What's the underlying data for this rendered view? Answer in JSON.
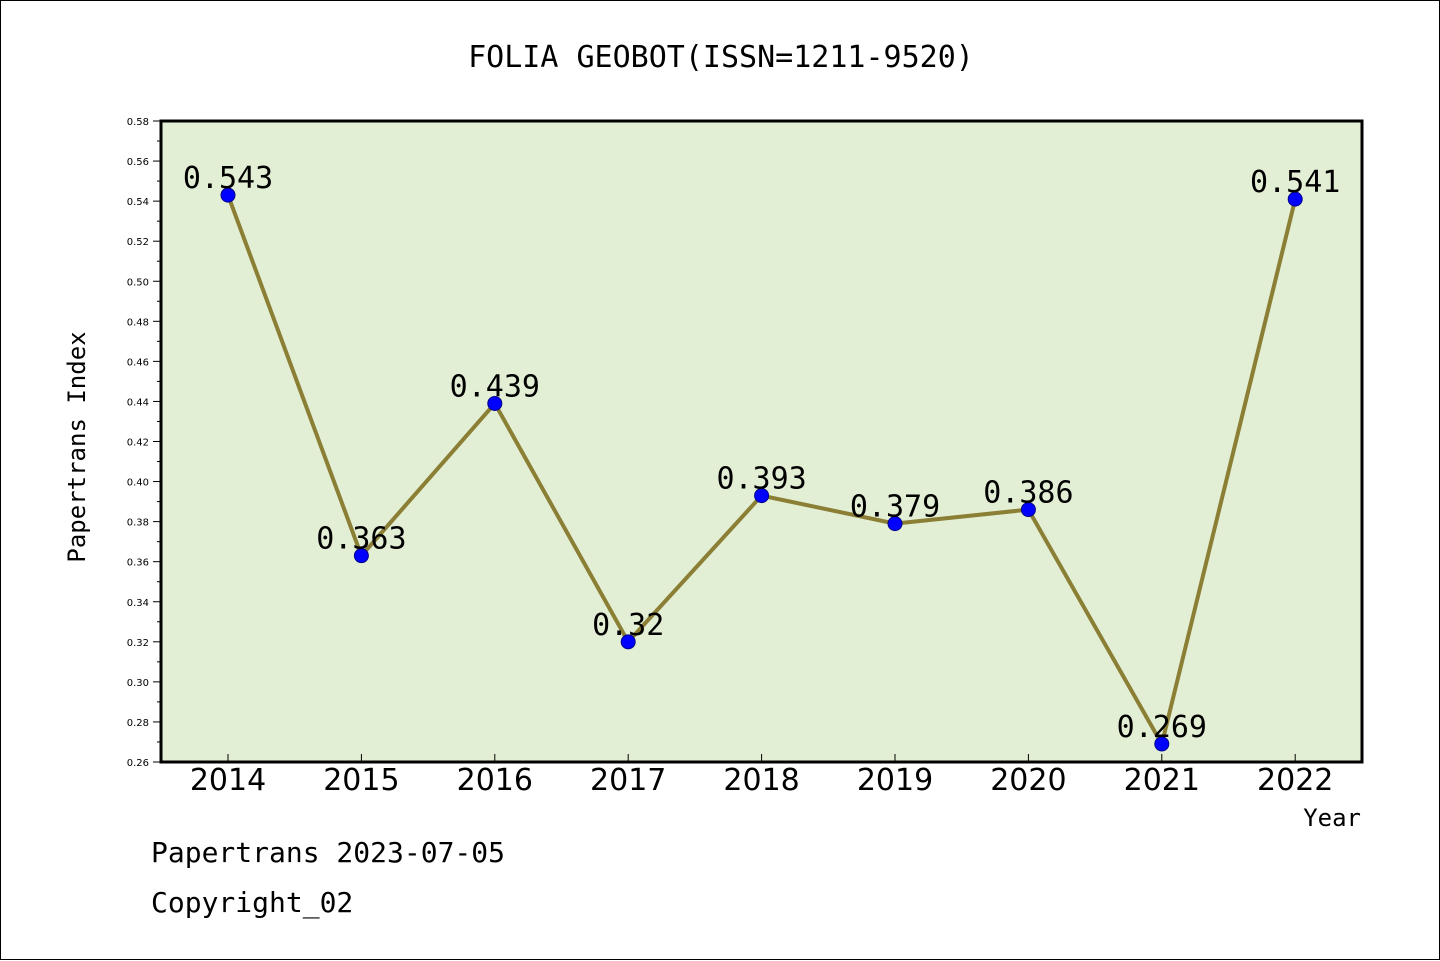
{
  "chart_data": {
    "type": "line",
    "title": "FOLIA GEOBOT(ISSN=1211-9520)",
    "xlabel": "Year",
    "ylabel": "Papertrans Index",
    "categories": [
      "2014",
      "2015",
      "2016",
      "2017",
      "2018",
      "2019",
      "2020",
      "2021",
      "2022"
    ],
    "series": [
      {
        "values": [
          0.543,
          0.363,
          0.439,
          0.32,
          0.393,
          0.379,
          0.386,
          0.269,
          0.541
        ],
        "labels": [
          "0.543",
          "0.363",
          "0.439",
          "0.32",
          "0.393",
          "0.379",
          "0.386",
          "0.269",
          "0.541"
        ]
      }
    ],
    "ylim": [
      0.26,
      0.58
    ],
    "yticks": [
      "0.26",
      "0.28",
      "0.30",
      "0.32",
      "0.34",
      "0.36",
      "0.38",
      "0.40",
      "0.42",
      "0.44",
      "0.46",
      "0.48",
      "0.50",
      "0.52",
      "0.54",
      "0.56",
      "0.58"
    ],
    "grid": false,
    "legend": "none",
    "colors": {
      "plot_background": "#e2efd4",
      "line": "#8b7e35",
      "marker": "#0000ff",
      "marker_edge": "#00008b"
    }
  },
  "footer": {
    "line1": "Papertrans 2023-07-05",
    "line2": "Copyright_02"
  }
}
